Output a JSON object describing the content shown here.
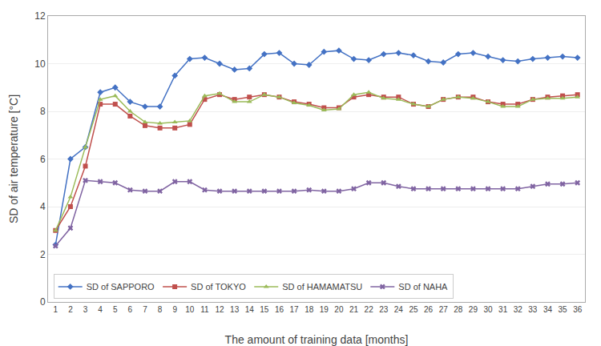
{
  "chart_data": {
    "type": "line",
    "xlabel": "The amount of training data [months]",
    "ylabel": "SD of air temperature [°C]",
    "x": [
      1,
      2,
      3,
      4,
      5,
      6,
      7,
      8,
      9,
      10,
      11,
      12,
      13,
      14,
      15,
      16,
      17,
      18,
      19,
      20,
      21,
      22,
      23,
      24,
      25,
      26,
      27,
      28,
      29,
      30,
      31,
      32,
      33,
      34,
      35,
      36
    ],
    "xlim": [
      0.5,
      36.5
    ],
    "xticks": [
      1,
      2,
      3,
      4,
      5,
      6,
      7,
      8,
      9,
      10,
      11,
      12,
      13,
      14,
      15,
      16,
      17,
      18,
      19,
      20,
      21,
      22,
      23,
      24,
      25,
      26,
      27,
      28,
      29,
      30,
      31,
      32,
      33,
      34,
      35,
      36
    ],
    "ylim": [
      0,
      12
    ],
    "yticks": [
      0,
      2,
      4,
      6,
      8,
      10,
      12
    ],
    "grid": true,
    "legend": "lower left",
    "series": [
      {
        "name": "SD of SAPPORO",
        "color": "#4472C4",
        "marker": "diamond",
        "values": [
          2.4,
          6.0,
          6.5,
          8.8,
          9.0,
          8.4,
          8.2,
          8.2,
          9.5,
          10.2,
          10.25,
          10.0,
          9.75,
          9.8,
          10.4,
          10.45,
          10.0,
          9.95,
          10.5,
          10.55,
          10.2,
          10.15,
          10.4,
          10.45,
          10.35,
          10.1,
          10.05,
          10.4,
          10.45,
          10.3,
          10.15,
          10.1,
          10.2,
          10.25,
          10.3,
          10.25
        ]
      },
      {
        "name": "SD of TOKYO",
        "color": "#C0504D",
        "marker": "square",
        "values": [
          3.0,
          4.0,
          5.7,
          8.3,
          8.3,
          7.8,
          7.4,
          7.3,
          7.3,
          7.45,
          8.5,
          8.7,
          8.5,
          8.6,
          8.7,
          8.6,
          8.4,
          8.3,
          8.15,
          8.15,
          8.6,
          8.7,
          8.6,
          8.6,
          8.3,
          8.2,
          8.5,
          8.6,
          8.6,
          8.4,
          8.3,
          8.3,
          8.5,
          8.6,
          8.65,
          8.7
        ]
      },
      {
        "name": "SD of HAMAMATSU",
        "color": "#9BBB59",
        "marker": "triangle-up",
        "values": [
          3.0,
          4.4,
          6.5,
          8.5,
          8.65,
          8.0,
          7.55,
          7.5,
          7.55,
          7.6,
          8.65,
          8.75,
          8.4,
          8.4,
          8.7,
          8.6,
          8.35,
          8.25,
          8.05,
          8.1,
          8.7,
          8.8,
          8.55,
          8.5,
          8.3,
          8.2,
          8.5,
          8.6,
          8.55,
          8.4,
          8.2,
          8.2,
          8.5,
          8.55,
          8.55,
          8.6
        ]
      },
      {
        "name": "SD of NAHA",
        "color": "#8064A2",
        "marker": "x",
        "values": [
          2.35,
          3.1,
          5.1,
          5.05,
          5.0,
          4.7,
          4.65,
          4.65,
          5.05,
          5.05,
          4.7,
          4.65,
          4.65,
          4.65,
          4.65,
          4.65,
          4.65,
          4.7,
          4.65,
          4.65,
          4.75,
          5.0,
          5.0,
          4.85,
          4.75,
          4.75,
          4.75,
          4.75,
          4.75,
          4.75,
          4.75,
          4.75,
          4.85,
          4.95,
          4.95,
          5.0
        ]
      }
    ]
  }
}
